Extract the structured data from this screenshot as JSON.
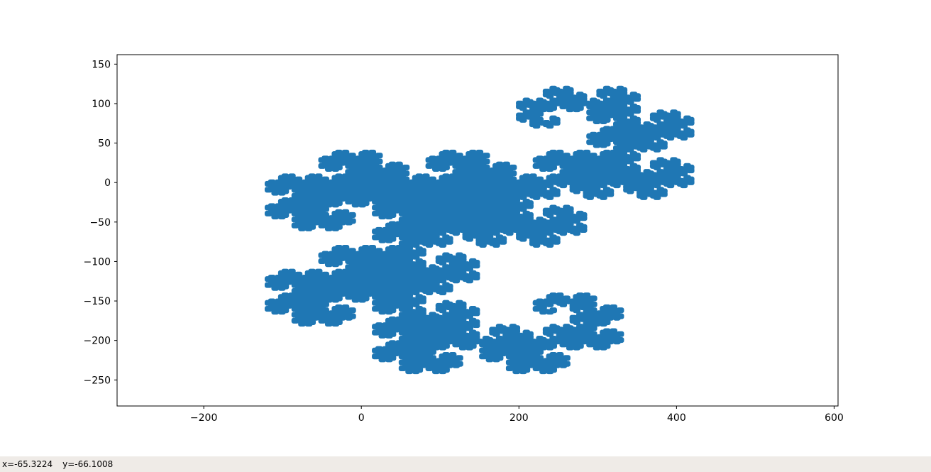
{
  "status_bar": {
    "x_readout": "x=-65.3224",
    "y_readout": "y=-66.1008"
  },
  "chart_data": {
    "type": "area",
    "title": "",
    "xlabel": "",
    "ylabel": "",
    "xlim": [
      -310,
      605
    ],
    "ylim": [
      -283,
      162
    ],
    "xticks": [
      -200,
      0,
      200,
      400,
      600
    ],
    "xtick_labels": [
      "−200",
      "0",
      "200",
      "400",
      "600"
    ],
    "yticks": [
      150,
      100,
      50,
      0,
      -50,
      -100,
      -150,
      -200,
      -250
    ],
    "ytick_labels": [
      "150",
      "100",
      "50",
      "0",
      "−50",
      "−100",
      "−150",
      "−200",
      "−250"
    ],
    "grid": false,
    "legend": "none",
    "fill_color": "#1f77b4",
    "shape": "dragon-curve-fractal",
    "bounds": {
      "x": [
        -120,
        420
      ],
      "y": [
        -240,
        120
      ]
    }
  }
}
